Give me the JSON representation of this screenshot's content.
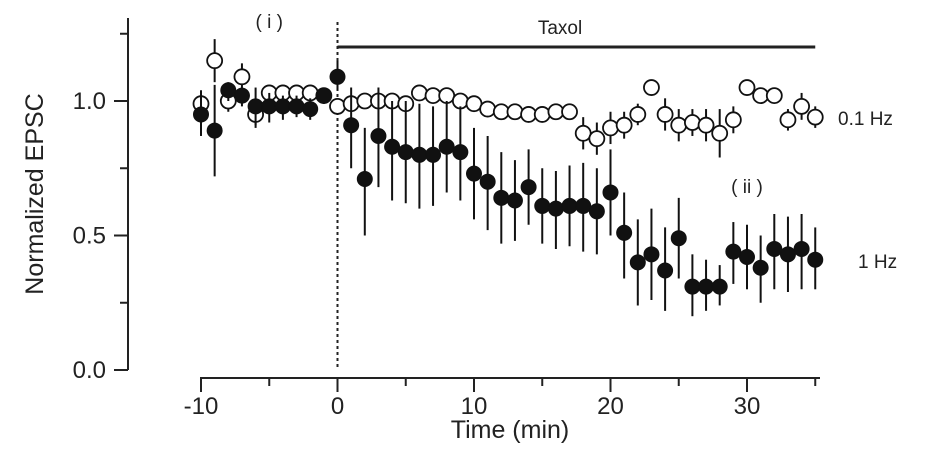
{
  "chart_data": {
    "type": "scatter",
    "xlabel": "Time (min)",
    "ylabel": "Normalized EPSC",
    "xlim": [
      -11,
      36
    ],
    "ylim": [
      0,
      1.3
    ],
    "xticks": [
      -10,
      0,
      10,
      20,
      30
    ],
    "xtick_labels": [
      "-10",
      "0",
      "10",
      "20",
      "30"
    ],
    "yticks": [
      0,
      0.5,
      1.0
    ],
    "ytick_labels": [
      "0.0",
      "0.5",
      "1.0"
    ],
    "grid": false,
    "legend": "none",
    "annotations": {
      "treatment_label": "Taxol",
      "treatment_start": 0,
      "treatment_end": 35,
      "marker_i": "( i )",
      "marker_i_x": -5,
      "marker_ii": "( ii )",
      "marker_ii_x": 30,
      "label_open": "0.1 Hz",
      "label_filled": "1 Hz"
    },
    "series": [
      {
        "marker": "open-circle",
        "x": [
          -10,
          -9,
          -8,
          -7,
          -6,
          -5,
          -4,
          -3,
          -2,
          -1,
          0,
          1,
          2,
          3,
          4,
          5,
          6,
          7,
          8,
          9,
          10,
          11,
          12,
          13,
          14,
          15,
          16,
          17,
          18,
          19,
          20,
          21,
          22,
          23,
          24,
          25,
          26,
          27,
          28,
          29,
          30,
          31,
          32,
          33,
          34,
          35
        ],
        "y": [
          0.99,
          1.15,
          1.0,
          1.09,
          0.95,
          1.03,
          1.03,
          1.03,
          1.03,
          1.02,
          0.98,
          0.99,
          1.0,
          1.0,
          1.0,
          0.99,
          1.03,
          1.02,
          1.02,
          1.0,
          0.99,
          0.97,
          0.96,
          0.96,
          0.95,
          0.95,
          0.96,
          0.96,
          0.88,
          0.86,
          0.9,
          0.91,
          0.95,
          1.05,
          0.95,
          0.91,
          0.92,
          0.91,
          0.88,
          0.93,
          1.05,
          1.02,
          1.02,
          0.93,
          0.98,
          0.94
        ],
        "err": [
          0.03,
          0.08,
          0.04,
          0.05,
          0.04,
          0.03,
          0.03,
          0.03,
          0.03,
          0.03,
          0.03,
          0.02,
          0.02,
          0.02,
          0.02,
          0.02,
          0.02,
          0.02,
          0.02,
          0.02,
          0.02,
          0.02,
          0.02,
          0.02,
          0.02,
          0.02,
          0.02,
          0.03,
          0.06,
          0.06,
          0.06,
          0.05,
          0.04,
          0.03,
          0.06,
          0.06,
          0.05,
          0.06,
          0.09,
          0.05,
          0.02,
          0.02,
          0.02,
          0.04,
          0.05,
          0.04
        ]
      },
      {
        "marker": "filled-circle",
        "x": [
          -10,
          -9,
          -8,
          -7,
          -6,
          -5,
          -4,
          -3,
          -2,
          -1,
          0,
          1,
          2,
          3,
          4,
          5,
          6,
          7,
          8,
          9,
          10,
          11,
          12,
          13,
          14,
          15,
          16,
          17,
          18,
          19,
          20,
          21,
          22,
          23,
          24,
          25,
          26,
          27,
          28,
          29,
          30,
          31,
          32,
          33,
          34,
          35
        ],
        "y": [
          0.95,
          0.89,
          1.04,
          1.02,
          0.98,
          0.98,
          0.98,
          0.98,
          0.97,
          1.02,
          1.09,
          0.91,
          0.71,
          0.87,
          0.83,
          0.81,
          0.8,
          0.8,
          0.83,
          0.81,
          0.73,
          0.7,
          0.64,
          0.63,
          0.68,
          0.61,
          0.6,
          0.61,
          0.61,
          0.59,
          0.66,
          0.51,
          0.4,
          0.43,
          0.37,
          0.49,
          0.31,
          0.31,
          0.31,
          0.44,
          0.42,
          0.38,
          0.45,
          0.43,
          0.45,
          0.41
        ]
      }
    ],
    "error_bars_filled_lo": [
      0.87,
      0.72,
      1.0,
      0.98,
      0.9,
      0.92,
      0.93,
      0.94,
      0.93,
      0.99,
      1.04,
      0.75,
      0.5,
      0.68,
      0.63,
      0.62,
      0.6,
      0.61,
      0.66,
      0.63,
      0.56,
      0.52,
      0.47,
      0.48,
      0.54,
      0.47,
      0.45,
      0.46,
      0.44,
      0.43,
      0.5,
      0.34,
      0.24,
      0.26,
      0.22,
      0.34,
      0.2,
      0.22,
      0.24,
      0.32,
      0.3,
      0.25,
      0.3,
      0.29,
      0.3,
      0.3
    ],
    "error_bars_filled_hi": [
      1.04,
      1.06,
      1.07,
      1.05,
      1.05,
      1.03,
      1.02,
      1.02,
      1.01,
      1.05,
      1.15,
      1.05,
      0.9,
      1.05,
      1.0,
      1.0,
      0.99,
      0.98,
      1.0,
      0.98,
      0.9,
      0.87,
      0.81,
      0.78,
      0.82,
      0.75,
      0.74,
      0.76,
      0.77,
      0.75,
      0.82,
      0.66,
      0.56,
      0.6,
      0.53,
      0.64,
      0.43,
      0.41,
      0.39,
      0.55,
      0.54,
      0.5,
      0.58,
      0.57,
      0.58,
      0.53
    ]
  }
}
